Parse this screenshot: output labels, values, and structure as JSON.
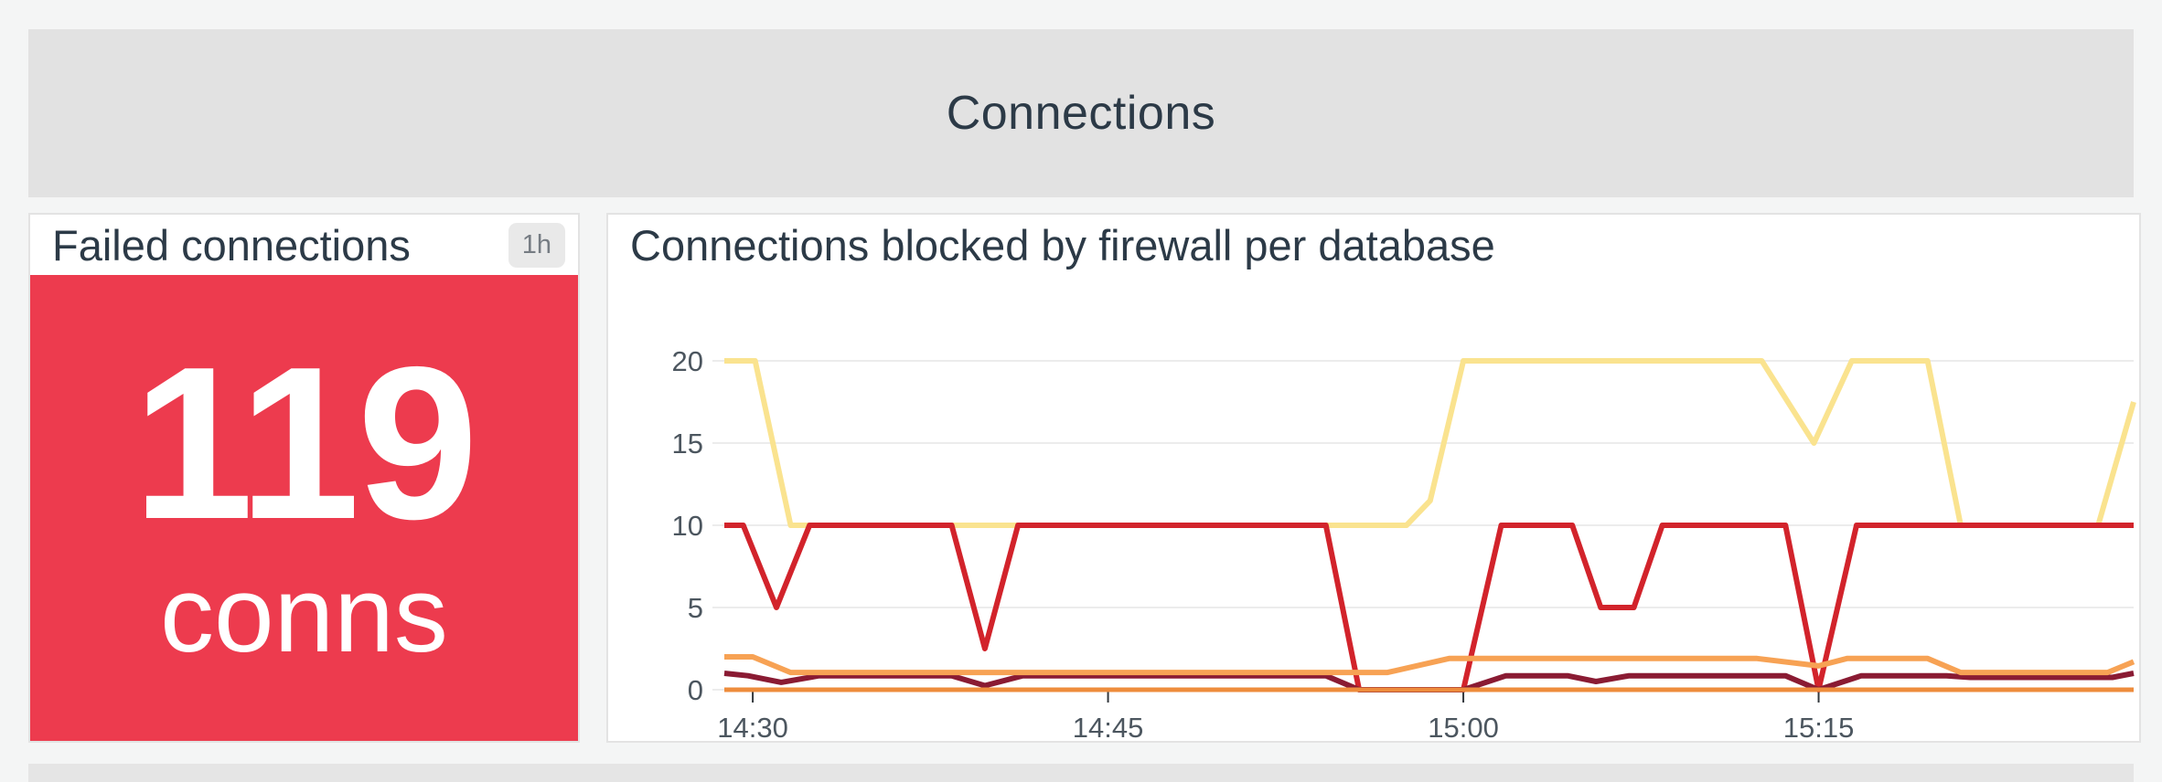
{
  "page": {
    "background": "#F4F5F5",
    "bottom_strip_color": "#E5E5E5"
  },
  "row_header": {
    "title": "Connections",
    "background": "#E2E2E2",
    "title_color": "#2C3A47"
  },
  "stat_panel": {
    "title": "Failed connections",
    "timeframe_badge": "1h",
    "value": "119",
    "unit": "conns",
    "background": "#ED3B4E",
    "value_color": "#FFFFFF"
  },
  "chart_panel": {
    "title": "Connections blocked by firewall per database"
  },
  "chart_data": {
    "type": "line",
    "title": "Connections blocked by firewall per database",
    "xlabel": "",
    "ylabel": "",
    "ylim": [
      0,
      20
    ],
    "yticks": [
      0,
      5,
      10,
      15,
      20
    ],
    "grid": "horizontal",
    "legend": "none",
    "axis_color": "#4C565F",
    "tick_color": "#33383D",
    "grid_color": "#ECECEC",
    "t_range": [
      0,
      59.5
    ],
    "xticks": [
      {
        "label": "14:30",
        "t": 1.2
      },
      {
        "label": "14:45",
        "t": 16.2
      },
      {
        "label": "15:00",
        "t": 31.2
      },
      {
        "label": "15:15",
        "t": 46.2
      }
    ],
    "series": [
      {
        "name": "light-yellow",
        "color": "#FAE38F",
        "width": 6,
        "points": [
          [
            0,
            20
          ],
          [
            1.3,
            20
          ],
          [
            2.8,
            10
          ],
          [
            28.8,
            10
          ],
          [
            29.8,
            11.5
          ],
          [
            31.2,
            20
          ],
          [
            43.8,
            20
          ],
          [
            46,
            15
          ],
          [
            47.6,
            20
          ],
          [
            50.8,
            20
          ],
          [
            52.2,
            10
          ],
          [
            58,
            10
          ],
          [
            59.5,
            17.5
          ]
        ]
      },
      {
        "name": "red",
        "color": "#D2232B",
        "width": 6,
        "points": [
          [
            0,
            10
          ],
          [
            0.8,
            10
          ],
          [
            2.2,
            5
          ],
          [
            3.6,
            10
          ],
          [
            9.6,
            10
          ],
          [
            11,
            2.5
          ],
          [
            12.4,
            10
          ],
          [
            25.4,
            10
          ],
          [
            26.8,
            0
          ],
          [
            31.2,
            0
          ],
          [
            32.8,
            10
          ],
          [
            35.8,
            10
          ],
          [
            37,
            5
          ],
          [
            38.4,
            5
          ],
          [
            39.6,
            10
          ],
          [
            44.8,
            10
          ],
          [
            46.2,
            0
          ],
          [
            47.8,
            10
          ],
          [
            59.5,
            10
          ]
        ]
      },
      {
        "name": "dark-red",
        "color": "#8A1B33",
        "width": 6,
        "points": [
          [
            0,
            1
          ],
          [
            1,
            0.85
          ],
          [
            2.4,
            0.45
          ],
          [
            4,
            0.85
          ],
          [
            9.6,
            0.85
          ],
          [
            11,
            0.25
          ],
          [
            12.6,
            0.85
          ],
          [
            25.4,
            0.85
          ],
          [
            26.8,
            0
          ],
          [
            31.2,
            0
          ],
          [
            33,
            0.85
          ],
          [
            35.6,
            0.85
          ],
          [
            36.8,
            0.5
          ],
          [
            38.2,
            0.85
          ],
          [
            44.8,
            0.85
          ],
          [
            46.2,
            0
          ],
          [
            48,
            0.85
          ],
          [
            51.6,
            0.85
          ],
          [
            52.6,
            0.75
          ],
          [
            58.6,
            0.75
          ],
          [
            59.5,
            1
          ]
        ]
      },
      {
        "name": "orange",
        "color": "#F7A254",
        "width": 6,
        "points": [
          [
            0,
            2
          ],
          [
            1.2,
            2
          ],
          [
            2.8,
            1.05
          ],
          [
            28,
            1.05
          ],
          [
            30.6,
            1.9
          ],
          [
            43.6,
            1.9
          ],
          [
            46.2,
            1.45
          ],
          [
            47.4,
            1.9
          ],
          [
            50.8,
            1.9
          ],
          [
            52.2,
            1.05
          ],
          [
            58.4,
            1.05
          ],
          [
            59.5,
            1.7
          ]
        ]
      },
      {
        "name": "orange-baseline",
        "color": "#EE8C3C",
        "width": 5,
        "points": [
          [
            0,
            0
          ],
          [
            59.5,
            0
          ]
        ]
      }
    ]
  }
}
